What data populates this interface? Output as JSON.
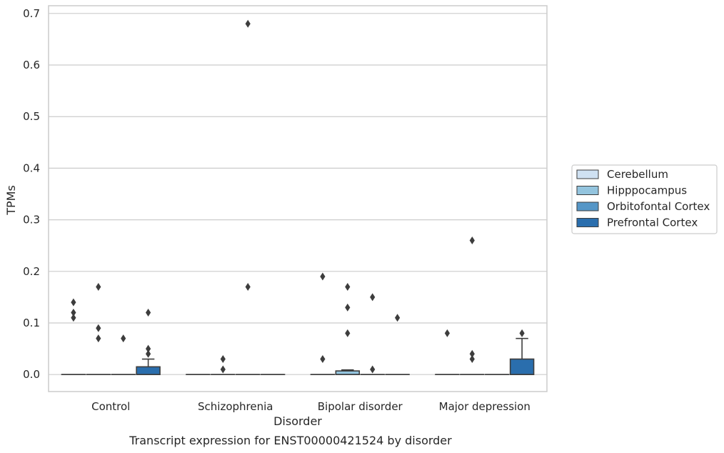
{
  "chart_data": {
    "type": "box",
    "xlabel": "Disorder",
    "ylabel": "TPMs",
    "caption": "Transcript expression for ENST00000421524 by disorder",
    "ylim": [
      -0.033,
      0.715
    ],
    "yticks": [
      "0.0",
      "0.1",
      "0.2",
      "0.3",
      "0.4",
      "0.5",
      "0.6",
      "0.7"
    ],
    "ytick_values": [
      0.0,
      0.1,
      0.2,
      0.3,
      0.4,
      0.5,
      0.6,
      0.7
    ],
    "grid": true,
    "legend_position": "right",
    "categories": [
      "Control",
      "Schizophrenia",
      "Bipolar disorder",
      "Major depression"
    ],
    "series": [
      {
        "name": "Cerebellum",
        "color": "#cfe1f2",
        "boxes": [
          {
            "q1": 0,
            "median": 0,
            "q3": 0,
            "whisker_low": 0,
            "whisker_high": 0,
            "outliers": [
              0.14,
              0.12,
              0.11
            ]
          },
          {
            "q1": 0,
            "median": 0,
            "q3": 0,
            "whisker_low": 0,
            "whisker_high": 0,
            "outliers": []
          },
          {
            "q1": 0,
            "median": 0,
            "q3": 0,
            "whisker_low": 0,
            "whisker_high": 0,
            "outliers": [
              0.19,
              0.03
            ]
          },
          {
            "q1": 0,
            "median": 0,
            "q3": 0,
            "whisker_low": 0,
            "whisker_high": 0,
            "outliers": [
              0.08
            ]
          }
        ]
      },
      {
        "name": "Hipppocampus",
        "color": "#93c4de",
        "boxes": [
          {
            "q1": 0,
            "median": 0,
            "q3": 0,
            "whisker_low": 0,
            "whisker_high": 0,
            "outliers": [
              0.17,
              0.09,
              0.07
            ]
          },
          {
            "q1": 0,
            "median": 0,
            "q3": 0,
            "whisker_low": 0,
            "whisker_high": 0,
            "outliers": [
              0.03,
              0.01
            ]
          },
          {
            "q1": 0,
            "median": 0,
            "q3": 0.007,
            "whisker_low": 0,
            "whisker_high": 0.009,
            "outliers": [
              0.17,
              0.13,
              0.08
            ]
          },
          {
            "q1": 0,
            "median": 0,
            "q3": 0,
            "whisker_low": 0,
            "whisker_high": 0,
            "outliers": [
              0.26,
              0.04,
              0.03
            ]
          }
        ]
      },
      {
        "name": "Orbitofontal Cortex",
        "color": "#5596c7",
        "boxes": [
          {
            "q1": 0,
            "median": 0,
            "q3": 0,
            "whisker_low": 0,
            "whisker_high": 0,
            "outliers": [
              0.07
            ]
          },
          {
            "q1": 0,
            "median": 0,
            "q3": 0,
            "whisker_low": 0,
            "whisker_high": 0,
            "outliers": [
              0.68,
              0.17
            ]
          },
          {
            "q1": 0,
            "median": 0,
            "q3": 0,
            "whisker_low": 0,
            "whisker_high": 0,
            "outliers": [
              0.15,
              0.01
            ]
          },
          {
            "q1": 0,
            "median": 0,
            "q3": 0,
            "whisker_low": 0,
            "whisker_high": 0,
            "outliers": []
          }
        ]
      },
      {
        "name": "Prefrontal Cortex",
        "color": "#2a6ead",
        "boxes": [
          {
            "q1": 0,
            "median": 0,
            "q3": 0.015,
            "whisker_low": 0,
            "whisker_high": 0.03,
            "outliers": [
              0.12,
              0.05,
              0.04
            ]
          },
          {
            "q1": 0,
            "median": 0,
            "q3": 0,
            "whisker_low": 0,
            "whisker_high": 0,
            "outliers": []
          },
          {
            "q1": 0,
            "median": 0,
            "q3": 0,
            "whisker_low": 0,
            "whisker_high": 0,
            "outliers": [
              0.11
            ]
          },
          {
            "q1": 0,
            "median": 0,
            "q3": 0.03,
            "whisker_low": 0,
            "whisker_high": 0.07,
            "outliers": [
              0.08
            ]
          }
        ]
      }
    ]
  }
}
